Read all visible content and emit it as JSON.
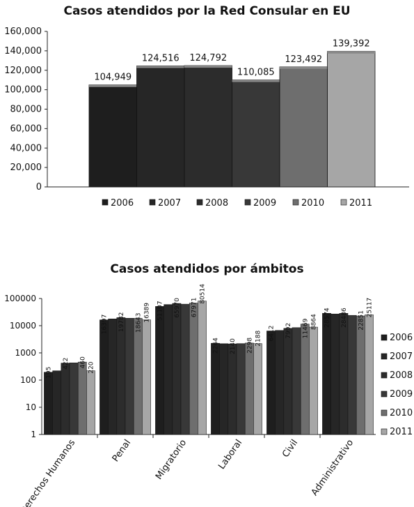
{
  "chart_data": [
    {
      "type": "bar",
      "title": "Casos atendidos por la Red Consular en EU",
      "categories": [
        "2006",
        "2007",
        "2008",
        "2009",
        "2010",
        "2011"
      ],
      "values": [
        104949,
        124516,
        124792,
        110085,
        123492,
        139392
      ],
      "value_labels": [
        "104,949",
        "124,516",
        "124,792",
        "110,085",
        "123,492",
        "139,392"
      ],
      "yticks": [
        "0",
        "20,000",
        "40,000",
        "60,000",
        "80,000",
        "100,000",
        "120,000",
        "140,000",
        "160,000"
      ],
      "ylim": [
        0,
        160000
      ],
      "legend": [
        "2006",
        "2007",
        "2008",
        "2009",
        "2010",
        "2011"
      ],
      "legend_position": "bottom",
      "colors": [
        "#1e1e1e",
        "#262626",
        "#2c2c2c",
        "#383838",
        "#6e6e6e",
        "#a6a6a6"
      ]
    },
    {
      "type": "bar",
      "title": "Casos atendidos por ámbitos",
      "yscale": "log",
      "ylim": [
        1,
        100000
      ],
      "yticks": [
        "1",
        "10",
        "100",
        "1000",
        "10000",
        "100000"
      ],
      "categories": [
        "Derechos Humanos",
        "Penal",
        "Migratorio",
        "Laboral",
        "Civil",
        "Administrativo"
      ],
      "series": [
        {
          "name": "2006",
          "values": [
            195,
            16397,
            51107,
            2264,
            6412,
            28574
          ]
        },
        {
          "name": "2007",
          "values": [
            220,
            17800,
            60000,
            2180,
            6700,
            27000
          ]
        },
        {
          "name": "2008",
          "values": [
            422,
            19782,
            65970,
            2140,
            7992,
            28486
          ]
        },
        {
          "name": "2009",
          "values": [
            430,
            18800,
            62000,
            2200,
            8500,
            24000
          ]
        },
        {
          "name": "2010",
          "values": [
            460,
            18643,
            67971,
            2298,
            11469,
            22851
          ]
        },
        {
          "name": "2011",
          "values": [
            220,
            16389,
            80514,
            2188,
            8864,
            25117
          ]
        }
      ],
      "data_labels": [
        {
          "category": 0,
          "series": 0,
          "text": "195"
        },
        {
          "category": 0,
          "series": 2,
          "text": "422"
        },
        {
          "category": 0,
          "series": 4,
          "text": "460"
        },
        {
          "category": 0,
          "series": 5,
          "text": "220"
        },
        {
          "category": 1,
          "series": 0,
          "text": "16397"
        },
        {
          "category": 1,
          "series": 2,
          "text": "19782"
        },
        {
          "category": 1,
          "series": 4,
          "text": "18643"
        },
        {
          "category": 1,
          "series": 5,
          "text": "16389"
        },
        {
          "category": 2,
          "series": 0,
          "text": "51107"
        },
        {
          "category": 2,
          "series": 2,
          "text": "65970"
        },
        {
          "category": 2,
          "series": 4,
          "text": "67971"
        },
        {
          "category": 2,
          "series": 5,
          "text": "80514"
        },
        {
          "category": 3,
          "series": 0,
          "text": "2264"
        },
        {
          "category": 3,
          "series": 2,
          "text": "2140"
        },
        {
          "category": 3,
          "series": 4,
          "text": "2298"
        },
        {
          "category": 3,
          "series": 5,
          "text": "2188"
        },
        {
          "category": 4,
          "series": 0,
          "text": "6412"
        },
        {
          "category": 4,
          "series": 2,
          "text": "7992"
        },
        {
          "category": 4,
          "series": 4,
          "text": "11469"
        },
        {
          "category": 4,
          "series": 5,
          "text": "8864"
        },
        {
          "category": 5,
          "series": 0,
          "text": "28574"
        },
        {
          "category": 5,
          "series": 2,
          "text": "28486"
        },
        {
          "category": 5,
          "series": 4,
          "text": "22851"
        },
        {
          "category": 5,
          "series": 5,
          "text": "25117"
        }
      ],
      "legend_position": "right",
      "colors": [
        "#1e1e1e",
        "#262626",
        "#2c2c2c",
        "#383838",
        "#6e6e6e",
        "#a6a6a6"
      ]
    }
  ]
}
